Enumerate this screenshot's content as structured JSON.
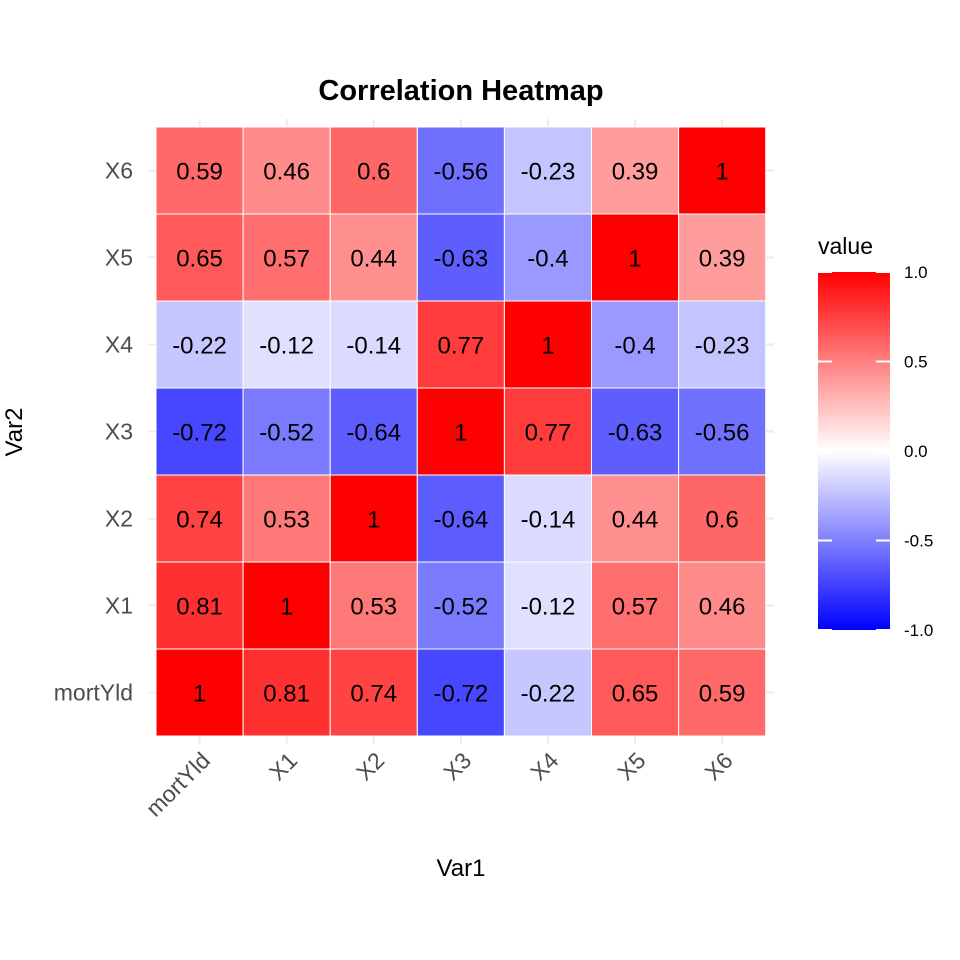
{
  "chart_data": {
    "type": "heatmap",
    "title": "Correlation Heatmap",
    "xlabel": "Var1",
    "ylabel": "Var2",
    "x_categories": [
      "mortYld",
      "X1",
      "X2",
      "X3",
      "X4",
      "X5",
      "X6"
    ],
    "y_categories": [
      "mortYld",
      "X1",
      "X2",
      "X3",
      "X4",
      "X5",
      "X6"
    ],
    "values": [
      [
        1,
        0.81,
        0.74,
        -0.72,
        -0.22,
        0.65,
        0.59
      ],
      [
        0.81,
        1,
        0.53,
        -0.52,
        -0.12,
        0.57,
        0.46
      ],
      [
        0.74,
        0.53,
        1,
        -0.64,
        -0.14,
        0.44,
        0.6
      ],
      [
        -0.72,
        -0.52,
        -0.64,
        1,
        0.77,
        -0.63,
        -0.56
      ],
      [
        -0.22,
        -0.12,
        -0.14,
        0.77,
        1,
        -0.4,
        -0.23
      ],
      [
        0.65,
        0.57,
        0.44,
        -0.63,
        -0.4,
        1,
        0.39
      ],
      [
        0.59,
        0.46,
        0.6,
        -0.56,
        -0.23,
        0.39,
        1
      ]
    ],
    "legend": {
      "title": "value",
      "range": [
        -1,
        1
      ],
      "ticks": [
        1.0,
        0.5,
        0.0,
        -0.5,
        -1.0
      ],
      "tick_labels": [
        "1.0",
        "0.5",
        "0.0",
        "-0.5",
        "-1.0"
      ],
      "low_color": "#0000ff",
      "mid_color": "#ffffff",
      "high_color": "#ff0000",
      "placement": "right"
    },
    "grid": true
  }
}
